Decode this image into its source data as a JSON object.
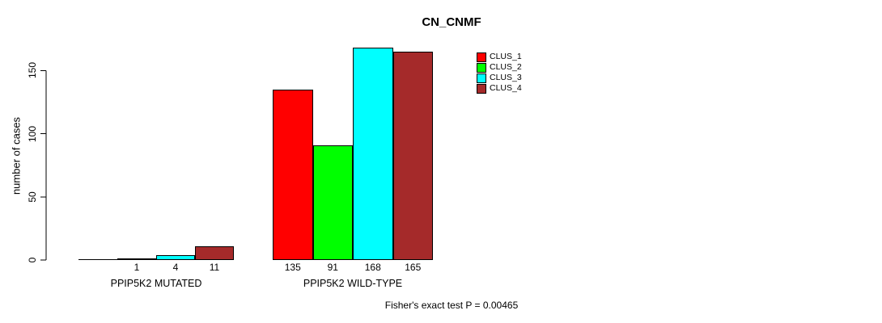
{
  "chart_data": {
    "type": "bar",
    "title": "CN_CNMF",
    "ylabel": "number of cases",
    "xlabel": "",
    "categories": [
      "PPIP5K2 MUTATED",
      "PPIP5K2 WILD-TYPE"
    ],
    "series": [
      {
        "name": "CLUS_1",
        "color": "#ff0000",
        "values": [
          0,
          135
        ]
      },
      {
        "name": "CLUS_2",
        "color": "#00ff00",
        "values": [
          1,
          91
        ]
      },
      {
        "name": "CLUS_3",
        "color": "#00ffff",
        "values": [
          4,
          168
        ]
      },
      {
        "name": "CLUS_4",
        "color": "#a52a2a",
        "values": [
          11,
          165
        ]
      }
    ],
    "bar_value_labels": [
      [
        "",
        "1",
        "4",
        "11"
      ],
      [
        "135",
        "91",
        "168",
        "165"
      ]
    ],
    "y_ticks": [
      0,
      50,
      100,
      150
    ],
    "ylim": [
      0,
      168
    ],
    "grid": false,
    "legend_position": "inside-top-center-right",
    "annotation": "Fisher's exact test P = 0.00465",
    "axis_color": "#000000",
    "background_color": "#ffffff"
  }
}
